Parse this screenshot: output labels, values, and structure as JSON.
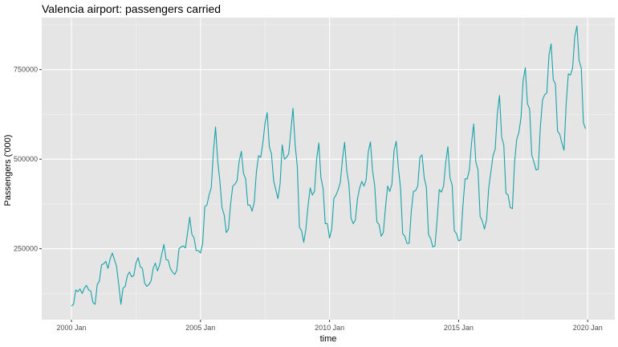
{
  "chart_data": {
    "type": "line",
    "title": "Valencia airport: passengers carried",
    "xlabel": "time",
    "ylabel": "Passengers ('000)",
    "x_ticks": [
      {
        "label": "2000 Jan",
        "value": 2000.0
      },
      {
        "label": "2005 Jan",
        "value": 2005.0
      },
      {
        "label": "2010 Jan",
        "value": 2010.0
      },
      {
        "label": "2015 Jan",
        "value": 2015.0
      },
      {
        "label": "2020 Jan",
        "value": 2020.0
      }
    ],
    "y_ticks": [
      {
        "label": "250000",
        "value": 250000
      },
      {
        "label": "500000",
        "value": 500000
      },
      {
        "label": "750000",
        "value": 750000
      }
    ],
    "xlim": [
      1998.85,
      2021.05
    ],
    "ylim": [
      52000,
      895000
    ],
    "grid": true,
    "legend": "none",
    "colors": {
      "line": "#17A3A8",
      "panel": "#E5E5E5",
      "grid_major": "#FFFFFF",
      "grid_minor": "#F2F2F2",
      "tick_label": "#4D4D4D"
    },
    "series": [
      {
        "start": "2000 Jan",
        "frequency": "monthly",
        "values": [
          90000,
          95000,
          135000,
          130000,
          138000,
          125000,
          140000,
          148000,
          135000,
          132000,
          100000,
          95000,
          150000,
          160000,
          205000,
          208000,
          215000,
          195000,
          222000,
          238000,
          220000,
          200000,
          150000,
          95000,
          140000,
          145000,
          175000,
          185000,
          172000,
          175000,
          210000,
          225000,
          200000,
          195000,
          155000,
          145000,
          150000,
          160000,
          195000,
          210000,
          188000,
          205000,
          235000,
          262000,
          220000,
          218000,
          195000,
          185000,
          178000,
          190000,
          250000,
          255000,
          258000,
          252000,
          295000,
          338000,
          290000,
          280000,
          245000,
          245000,
          238000,
          265000,
          368000,
          372000,
          400000,
          420000,
          520000,
          590000,
          495000,
          440000,
          365000,
          345000,
          295000,
          305000,
          375000,
          425000,
          430000,
          440000,
          495000,
          522000,
          460000,
          445000,
          372000,
          372000,
          355000,
          380000,
          465000,
          510000,
          505000,
          545000,
          600000,
          630000,
          535000,
          515000,
          440000,
          415000,
          390000,
          430000,
          540000,
          500000,
          505000,
          515000,
          578000,
          642000,
          540000,
          480000,
          310000,
          300000,
          268000,
          305000,
          370000,
          420000,
          400000,
          410000,
          500000,
          545000,
          448000,
          418000,
          320000,
          320000,
          280000,
          305000,
          390000,
          400000,
          415000,
          435000,
          500000,
          547000,
          468000,
          430000,
          335000,
          320000,
          330000,
          390000,
          420000,
          438000,
          425000,
          442000,
          520000,
          548000,
          468000,
          425000,
          325000,
          318000,
          285000,
          295000,
          365000,
          425000,
          410000,
          430000,
          525000,
          550000,
          475000,
          420000,
          292000,
          285000,
          265000,
          265000,
          355000,
          410000,
          412000,
          425000,
          505000,
          512000,
          448000,
          422000,
          290000,
          278000,
          255000,
          258000,
          330000,
          415000,
          408000,
          425000,
          490000,
          535000,
          448000,
          428000,
          300000,
          292000,
          272000,
          275000,
          370000,
          445000,
          445000,
          470000,
          545000,
          598000,
          492000,
          470000,
          340000,
          328000,
          305000,
          330000,
          420000,
          465000,
          510000,
          528000,
          628000,
          678000,
          562000,
          540000,
          405000,
          400000,
          365000,
          362000,
          490000,
          555000,
          575000,
          615000,
          720000,
          755000,
          655000,
          640000,
          512000,
          492000,
          470000,
          472000,
          590000,
          665000,
          680000,
          685000,
          790000,
          822000,
          722000,
          710000,
          578000,
          570000,
          545000,
          525000,
          655000,
          738000,
          735000,
          755000,
          842000,
          872000,
          775000,
          755000,
          602000,
          585000
        ]
      }
    ]
  }
}
